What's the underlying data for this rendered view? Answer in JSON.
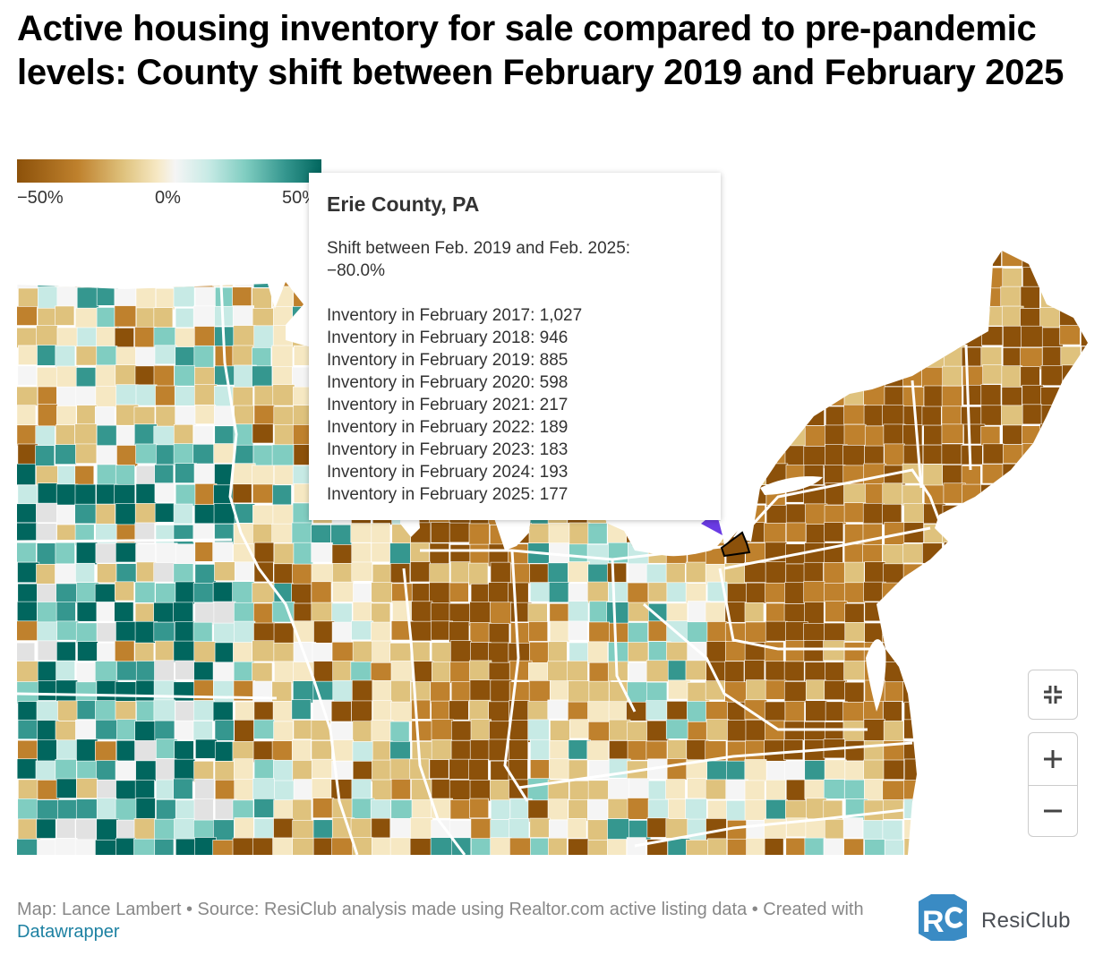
{
  "title": "Active housing inventory for sale compared to pre-pandemic levels: County shift between February 2019 and February 2025",
  "legend": {
    "ticks": [
      "−50%",
      "0%",
      "50%"
    ],
    "colors": [
      "#8c510a",
      "#bf812d",
      "#dfc27d",
      "#f6e8c3",
      "#f5f5f5",
      "#c7eae5",
      "#80cdc1",
      "#35978f",
      "#01665e"
    ]
  },
  "tooltip": {
    "county": "Erie County, PA",
    "shift_label": "Shift between Feb. 2019 and Feb. 2025:",
    "shift_value": "−80.0%",
    "inventory_rows": [
      "Inventory in February 2017: 1,027",
      "Inventory in February 2018: 946",
      "Inventory in February 2019: 885",
      "Inventory in February 2020: 598",
      "Inventory in February 2021: 217",
      "Inventory in February 2022: 189",
      "Inventory in February 2023: 183",
      "Inventory in February 2024: 193",
      "Inventory in February 2025: 177"
    ]
  },
  "map": {
    "highlighted_county": "Erie County, PA",
    "colors": {
      "water": "#ffffff",
      "no_data": "#e2e2e2",
      "state_border": "#ffffff",
      "highlight_stroke": "#000000",
      "arrow": "#6a3be4"
    }
  },
  "controls": {
    "fullscreen": "fullscreen-icon",
    "zoom_in": "+",
    "zoom_out": "−"
  },
  "footer": {
    "credit": "Map: Lance Lambert • Source: ResiClub analysis made using Realtor.com active listing data • Created with",
    "link_text": "Datawrapper"
  },
  "brand": {
    "name": "ResiClub",
    "color": "#3a8bc4"
  }
}
